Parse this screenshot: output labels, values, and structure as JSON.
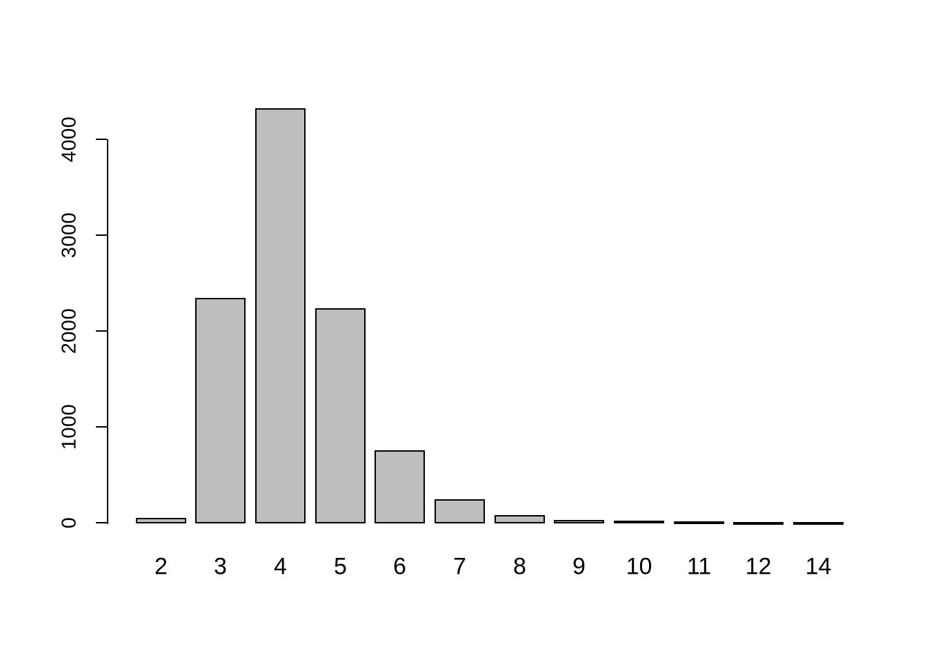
{
  "figure": {
    "background_color": "#ffffff",
    "axis_color": "#000000",
    "text_color": "#000000"
  },
  "chart_data": {
    "type": "bar",
    "title": "",
    "xlabel": "",
    "ylabel": "",
    "categories": [
      "2",
      "3",
      "4",
      "5",
      "6",
      "7",
      "8",
      "9",
      "10",
      "11",
      "12",
      "14"
    ],
    "values": [
      40,
      2340,
      4320,
      2230,
      750,
      235,
      72,
      22,
      12,
      5,
      3,
      2
    ],
    "y_ticks": [
      0,
      1000,
      2000,
      3000,
      4000
    ],
    "y_tick_labels": [
      "0",
      "1000",
      "2000",
      "3000",
      "4000"
    ],
    "ylim": [
      0,
      4000
    ],
    "grid": false,
    "legend_position": "none",
    "bar_fill_color": "#BEBEBE",
    "bar_border_color": "#000000"
  }
}
